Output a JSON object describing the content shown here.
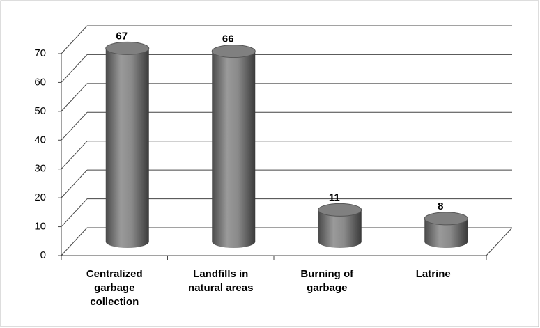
{
  "chart_data": {
    "type": "bar3d",
    "categories": [
      "Centralized garbage collection",
      "Landfills in natural areas",
      "Burning of garbage",
      "Latrine"
    ],
    "values": [
      67,
      66,
      11,
      8
    ],
    "color": "#808080",
    "ylim": [
      0,
      70
    ],
    "yticks": [
      0,
      10,
      20,
      30,
      40,
      50,
      60,
      70
    ],
    "grid": true
  }
}
